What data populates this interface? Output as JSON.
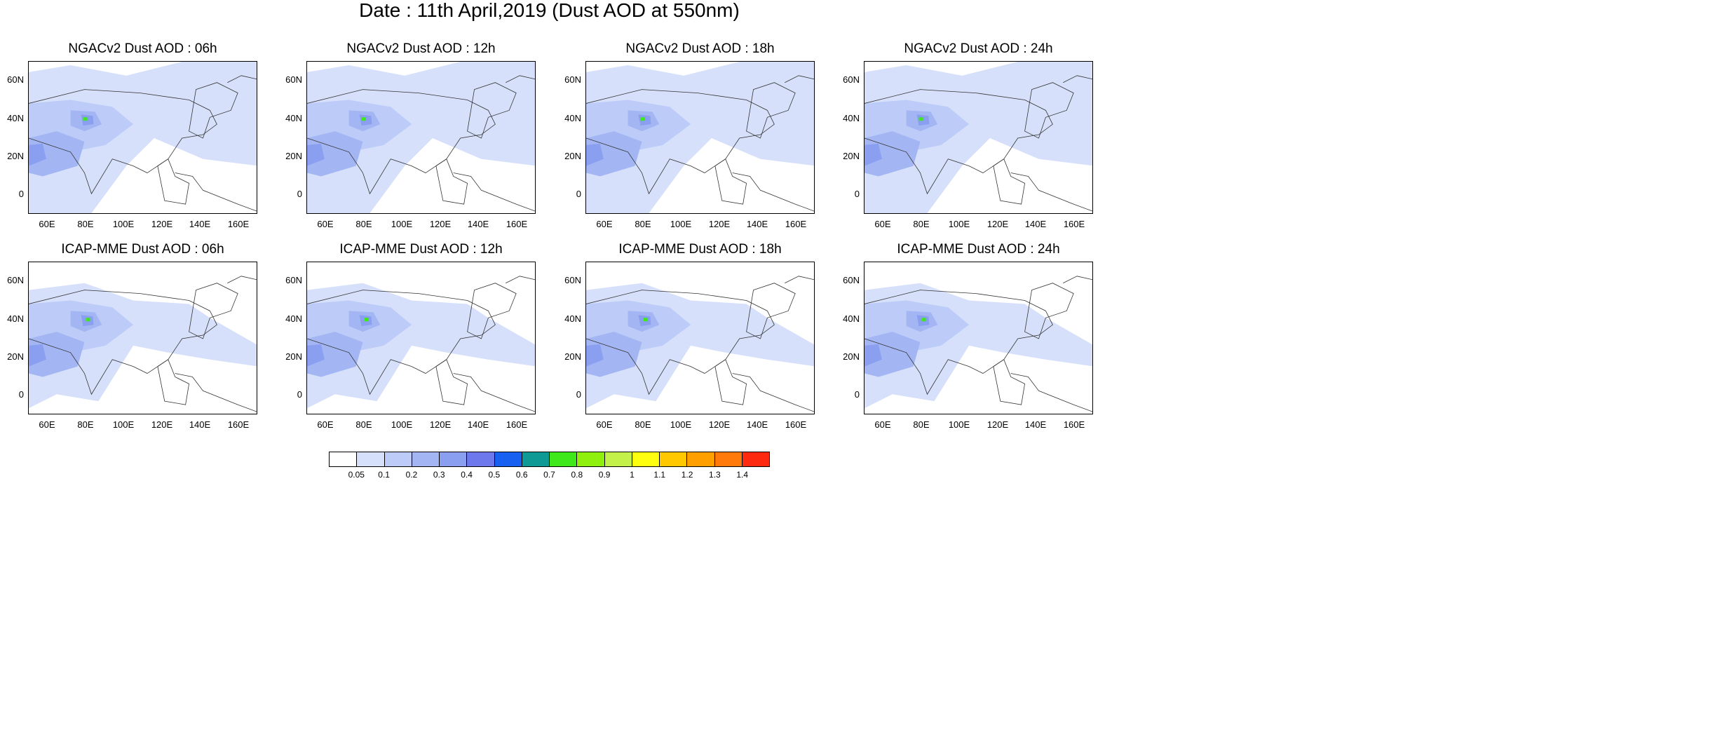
{
  "figure": {
    "title": "Date : 11th April,2019 (Dust AOD at 550nm)"
  },
  "axes": {
    "y_ticks": [
      "60N",
      "40N",
      "20N",
      "0"
    ],
    "x_ticks": [
      "60E",
      "80E",
      "100E",
      "120E",
      "140E",
      "160E"
    ]
  },
  "panels": [
    {
      "title": "NGACv2 Dust AOD : 06h",
      "model": "NGACv2",
      "lead": "06h"
    },
    {
      "title": "NGACv2 Dust AOD : 12h",
      "model": "NGACv2",
      "lead": "12h"
    },
    {
      "title": "NGACv2 Dust AOD : 18h",
      "model": "NGACv2",
      "lead": "18h"
    },
    {
      "title": "NGACv2 Dust AOD : 24h",
      "model": "NGACv2",
      "lead": "24h"
    },
    {
      "title": "ICAP-MME Dust AOD : 06h",
      "model": "ICAP-MME",
      "lead": "06h"
    },
    {
      "title": "ICAP-MME Dust AOD : 12h",
      "model": "ICAP-MME",
      "lead": "12h"
    },
    {
      "title": "ICAP-MME Dust AOD : 18h",
      "model": "ICAP-MME",
      "lead": "18h"
    },
    {
      "title": "ICAP-MME Dust AOD : 24h",
      "model": "ICAP-MME",
      "lead": "24h"
    }
  ],
  "colorbar": {
    "labels": [
      "0.05",
      "0.1",
      "0.2",
      "0.3",
      "0.4",
      "0.5",
      "0.6",
      "0.7",
      "0.8",
      "0.9",
      "1",
      "1.1",
      "1.2",
      "1.3",
      "1.4"
    ],
    "colors": [
      "#ffffff",
      "#d6e0fb",
      "#bccbf7",
      "#a3b6f3",
      "#8a9ff0",
      "#6d78ec",
      "#1860f0",
      "#0f9a96",
      "#3ee81a",
      "#8ff00e",
      "#c4f04a",
      "#fefe10",
      "#ffc800",
      "#ffa000",
      "#ff7a0a",
      "#fe2a10"
    ]
  }
}
